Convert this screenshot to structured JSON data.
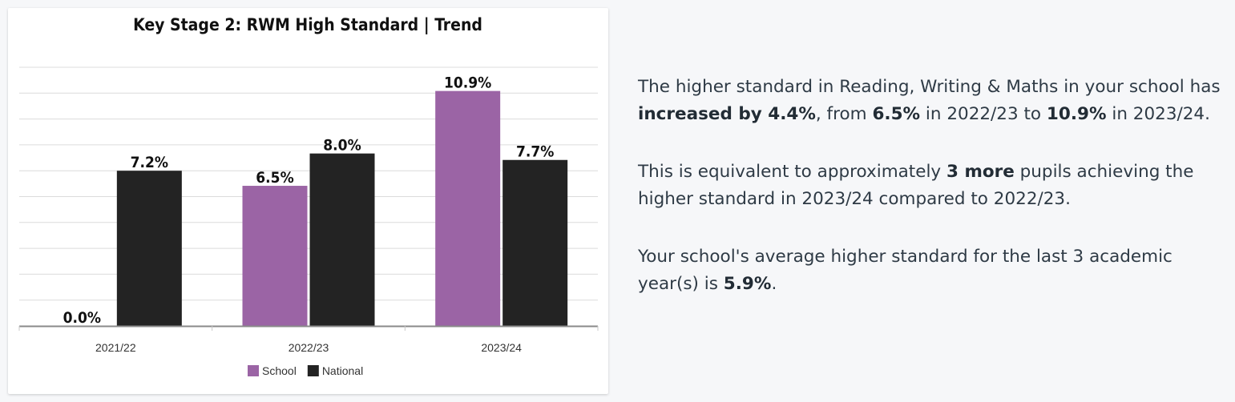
{
  "chart_data": {
    "type": "bar",
    "title": "Key Stage 2: RWM High Standard | Trend",
    "categories": [
      "2021/22",
      "2022/23",
      "2023/24"
    ],
    "series": [
      {
        "name": "School",
        "values": [
          0.0,
          6.5,
          10.9
        ],
        "labels": [
          "0.0%",
          "6.5%",
          "10.9%"
        ]
      },
      {
        "name": "National",
        "values": [
          7.2,
          8.0,
          7.7
        ],
        "labels": [
          "7.2%",
          "8.0%",
          "7.7%"
        ]
      }
    ],
    "ylim": [
      0,
      12
    ],
    "grid": true,
    "legend": "bottom-center",
    "colors": {
      "School": "#9b64a5",
      "National": "#232323"
    }
  },
  "summary": {
    "p1": {
      "t1": "The higher standard in Reading, Writing & Maths in your school has ",
      "b1": "increased by 4.4%",
      "t2": ", from ",
      "b2": "6.5%",
      "t3": " in 2022/23 to ",
      "b3": "10.9%",
      "t4": " in 2023/24."
    },
    "p2": {
      "t1": "This is equivalent to approximately ",
      "b1": "3 more",
      "t2": " pupils achieving the higher standard in 2023/24 compared to 2022/23."
    },
    "p3": {
      "t1": "Your school's average higher standard for the last 3 academic year(s) is ",
      "b1": "5.9%",
      "t2": "."
    }
  }
}
